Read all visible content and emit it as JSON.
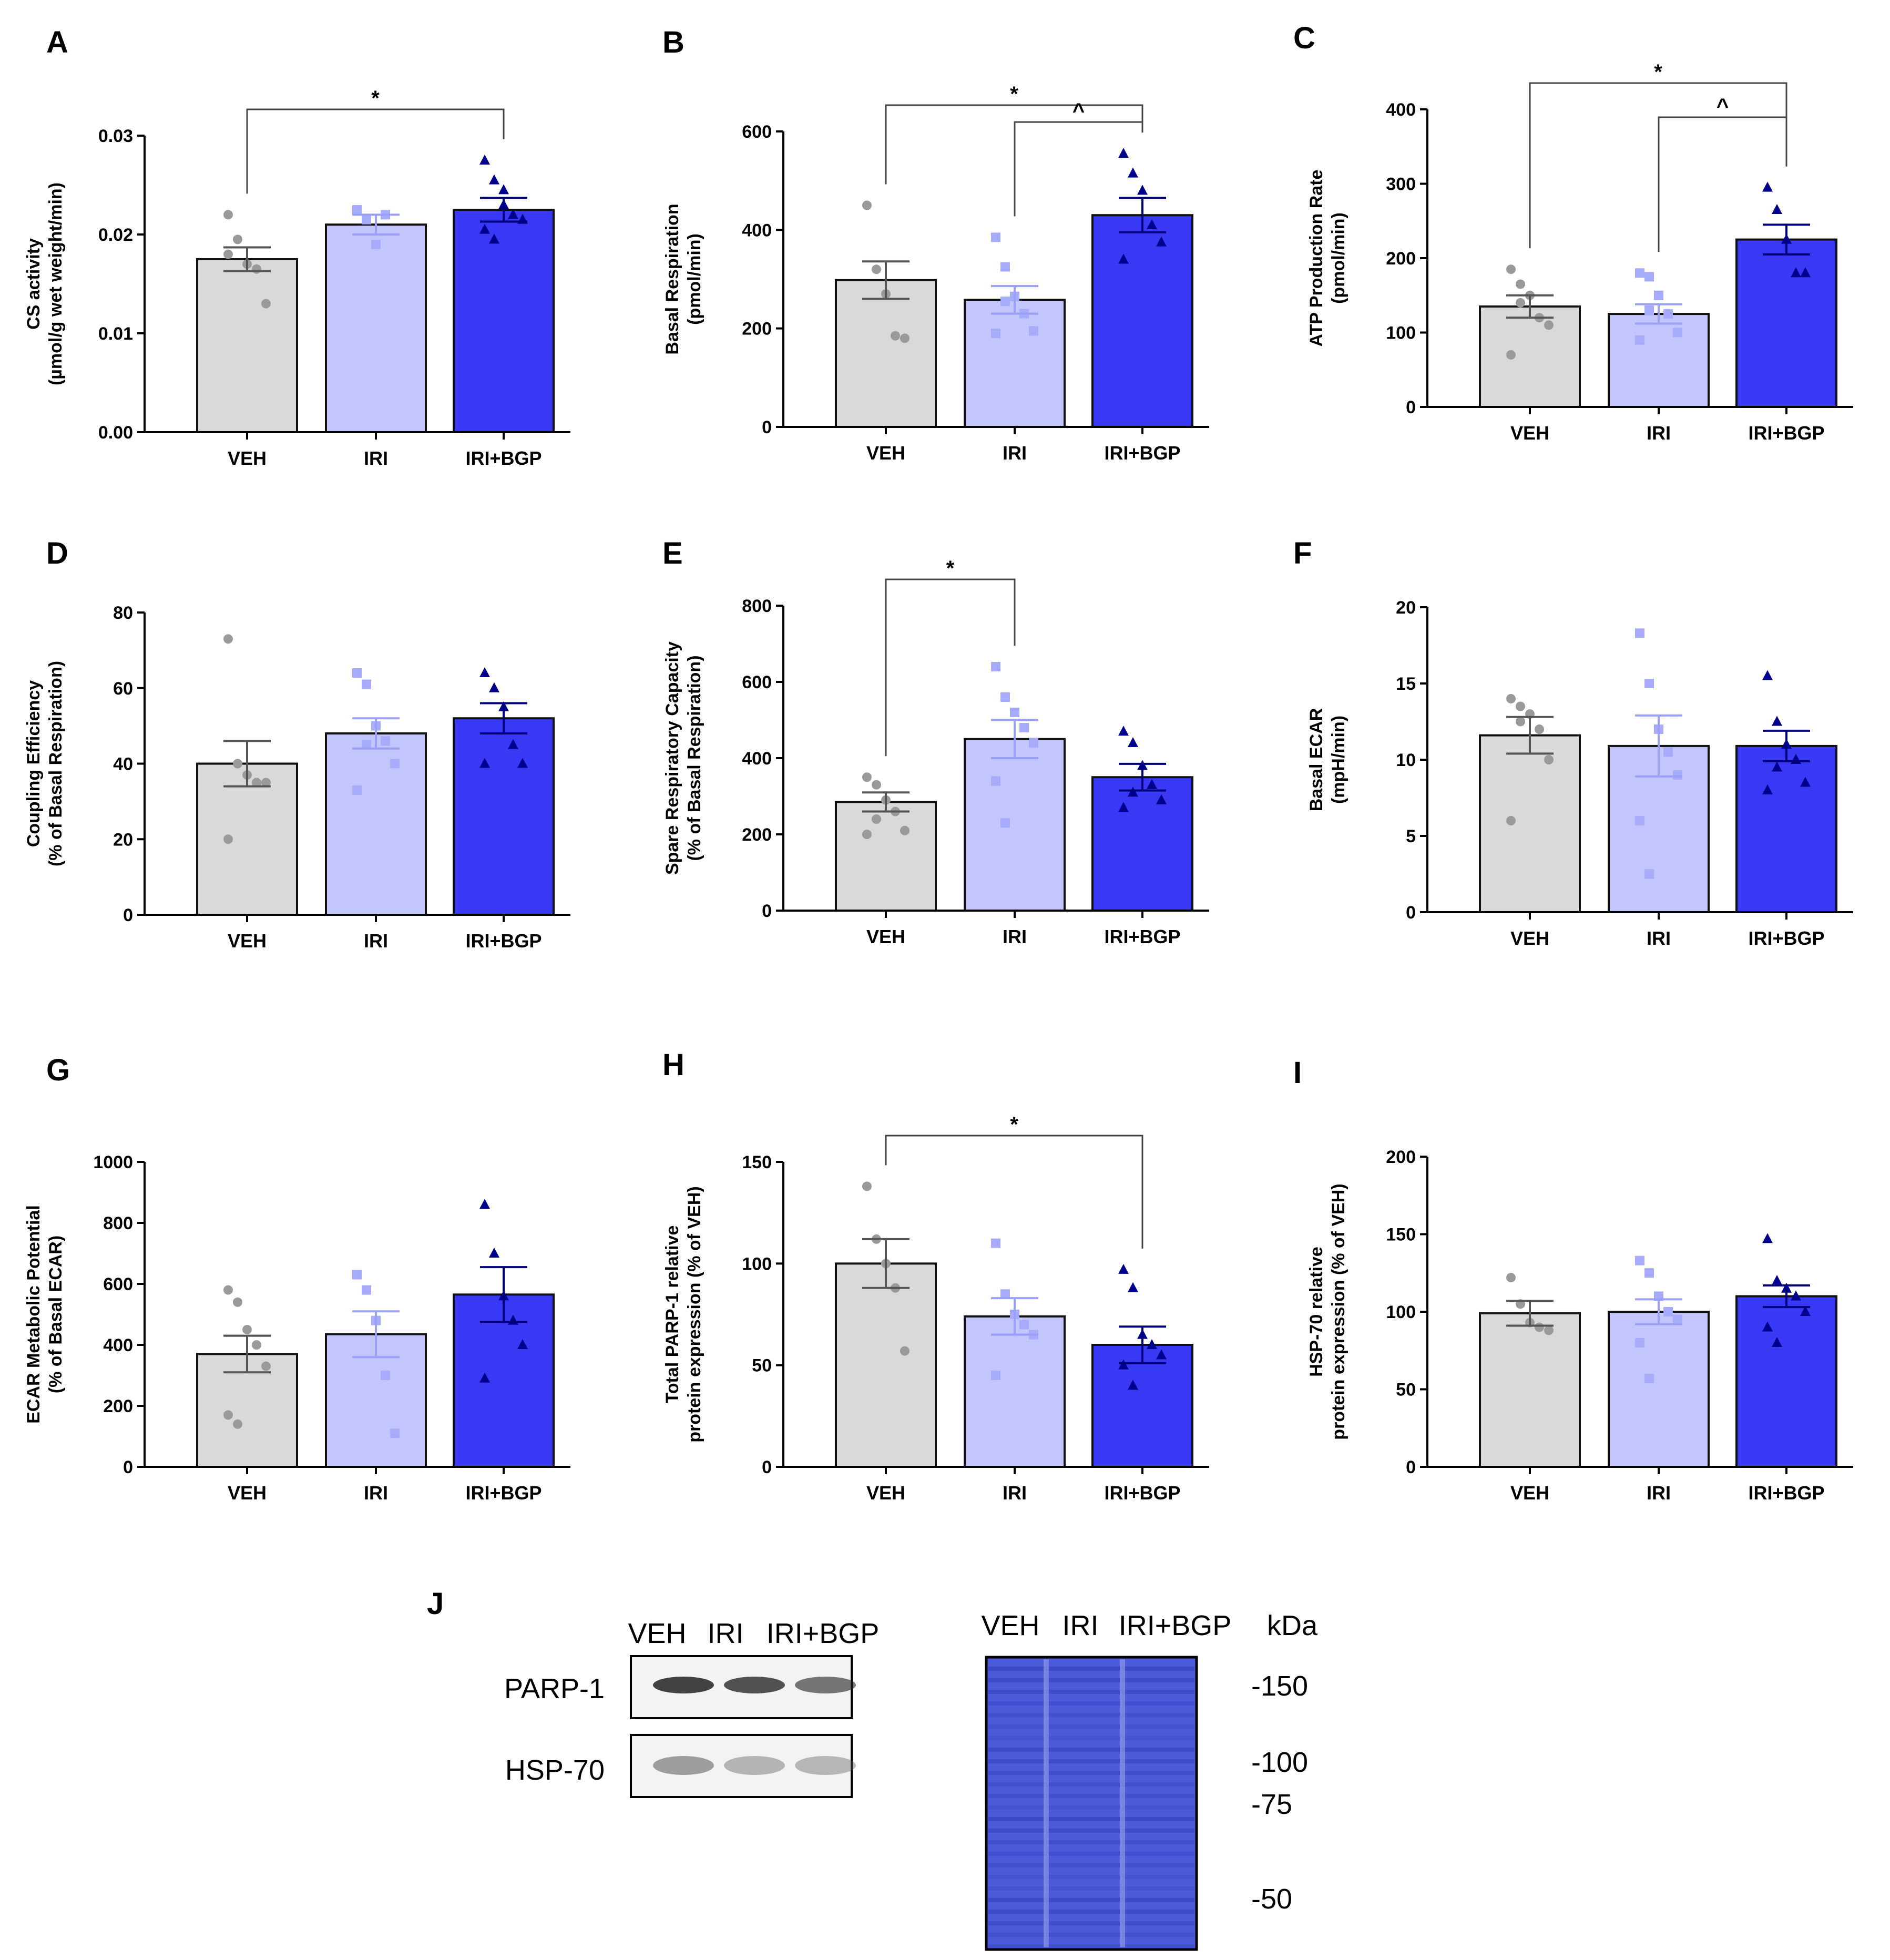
{
  "colors": {
    "veh": "#d9d9d9",
    "iri": "#c3c6fd",
    "bgp": "#3838f5",
    "veh_pt": "#9a9a9a",
    "iri_pt": "#a6abfb",
    "bgp_pt": "#00008e",
    "gel": "#4a5ad8",
    "gel_light": "#8d97ea"
  },
  "chart_data": [
    {
      "panel": "A",
      "type": "bar",
      "categories": [
        "VEH",
        "IRI",
        "IRI+BGP"
      ],
      "values": [
        0.0175,
        0.021,
        0.0225
      ],
      "errors": [
        0.0012,
        0.001,
        0.0012
      ],
      "ylabel": [
        "CS activity",
        "(µmol/g wet weight/min)"
      ],
      "ylim": [
        0,
        0.03
      ],
      "yticks": [
        "0.00",
        "0.01",
        "0.02",
        "0.03"
      ],
      "points": [
        [
          0.022,
          0.0195,
          0.017,
          0.0165,
          0.013,
          0.018
        ],
        [
          0.0225,
          0.0215,
          0.019,
          0.022
        ],
        [
          0.0275,
          0.0255,
          0.0245,
          0.022,
          0.0215,
          0.0205,
          0.0195,
          0.023
        ]
      ],
      "significance": [
        {
          "from": 0,
          "to": 2,
          "label": "*"
        }
      ]
    },
    {
      "panel": "B",
      "type": "bar",
      "categories": [
        "VEH",
        "IRI",
        "IRI+BGP"
      ],
      "values": [
        298,
        258,
        430
      ],
      "errors": [
        38,
        28,
        35
      ],
      "ylabel": [
        "Basal Respiration",
        "(pmol/min)"
      ],
      "ylim": [
        0,
        600
      ],
      "yticks": [
        "0",
        "200",
        "400",
        "600"
      ],
      "points": [
        [
          450,
          320,
          270,
          185,
          180
        ],
        [
          385,
          325,
          265,
          230,
          195,
          190,
          255
        ],
        [
          555,
          515,
          480,
          410,
          375,
          340
        ]
      ],
      "significance": [
        {
          "from": 0,
          "to": 2,
          "label": "*"
        },
        {
          "from": 1,
          "to": 2,
          "label": "^"
        }
      ]
    },
    {
      "panel": "C",
      "type": "bar",
      "categories": [
        "VEH",
        "IRI",
        "IRI+BGP"
      ],
      "values": [
        135,
        125,
        225
      ],
      "errors": [
        15,
        13,
        20
      ],
      "ylabel": [
        "ATP Production Rate",
        "(pmol/min)"
      ],
      "ylim": [
        0,
        400
      ],
      "yticks": [
        "0",
        "100",
        "200",
        "300",
        "400"
      ],
      "points": [
        [
          185,
          165,
          150,
          120,
          110,
          70,
          140
        ],
        [
          180,
          175,
          150,
          125,
          100,
          90,
          130
        ],
        [
          295,
          265,
          225,
          180,
          180
        ]
      ],
      "significance": [
        {
          "from": 0,
          "to": 2,
          "label": "*"
        },
        {
          "from": 1,
          "to": 2,
          "label": "^"
        }
      ]
    },
    {
      "panel": "D",
      "type": "bar",
      "categories": [
        "VEH",
        "IRI",
        "IRI+BGP"
      ],
      "values": [
        40,
        48,
        52
      ],
      "errors": [
        6,
        4,
        4
      ],
      "ylabel": [
        "Coupling Efficiency",
        "(% of Basal Respiration)"
      ],
      "ylim": [
        0,
        80
      ],
      "yticks": [
        "0",
        "20",
        "40",
        "60",
        "80"
      ],
      "points": [
        [
          73,
          40,
          37,
          35,
          35,
          20
        ],
        [
          64,
          61,
          50,
          46,
          40,
          33,
          45
        ],
        [
          64,
          60,
          55,
          45,
          40,
          40
        ]
      ],
      "significance": []
    },
    {
      "panel": "E",
      "type": "bar",
      "categories": [
        "VEH",
        "IRI",
        "IRI+BGP"
      ],
      "values": [
        285,
        450,
        350
      ],
      "errors": [
        25,
        50,
        35
      ],
      "ylabel": [
        "Spare Respiratory Capacity",
        "(% of Basal Respiration)"
      ],
      "ylim": [
        0,
        800
      ],
      "yticks": [
        "0",
        "200",
        "400",
        "600",
        "800"
      ],
      "points": [
        [
          350,
          330,
          290,
          260,
          210,
          200,
          240
        ],
        [
          640,
          560,
          520,
          480,
          440,
          340,
          230
        ],
        [
          470,
          440,
          380,
          330,
          290,
          270,
          310
        ]
      ],
      "significance": [
        {
          "from": 0,
          "to": 1,
          "label": "*"
        }
      ]
    },
    {
      "panel": "F",
      "type": "bar",
      "categories": [
        "VEH",
        "IRI",
        "IRI+BGP"
      ],
      "values": [
        11.6,
        10.9,
        10.9
      ],
      "errors": [
        1.2,
        2.0,
        1.0
      ],
      "ylabel": [
        "Basal ECAR",
        "(mpH/min)"
      ],
      "ylim": [
        0,
        20
      ],
      "yticks": [
        "0",
        "5",
        "10",
        "15",
        "20"
      ],
      "points": [
        [
          14,
          13.5,
          13,
          12,
          10,
          6,
          12.5
        ],
        [
          18.3,
          15,
          12,
          10.5,
          9,
          6,
          2.5
        ],
        [
          15.5,
          12.5,
          11,
          10,
          8.5,
          8,
          9.5
        ]
      ],
      "significance": []
    },
    {
      "panel": "G",
      "type": "bar",
      "categories": [
        "VEH",
        "IRI",
        "IRI+BGP"
      ],
      "values": [
        370,
        435,
        565
      ],
      "errors": [
        60,
        75,
        90
      ],
      "ylabel": [
        "ECAR Metabolic Potential",
        "(% of Basal ECAR)"
      ],
      "ylim": [
        0,
        1000
      ],
      "yticks": [
        "0",
        "200",
        "400",
        "600",
        "800",
        "1000"
      ],
      "points": [
        [
          580,
          540,
          450,
          400,
          330,
          170,
          140
        ],
        [
          630,
          580,
          480,
          300,
          110
        ],
        [
          860,
          700,
          560,
          480,
          400,
          290
        ]
      ],
      "significance": []
    },
    {
      "panel": "H",
      "type": "bar",
      "categories": [
        "VEH",
        "IRI",
        "IRI+BGP"
      ],
      "values": [
        100,
        74,
        60
      ],
      "errors": [
        12,
        9,
        9
      ],
      "ylabel": [
        "Total PARP-1 relative",
        "protein expression (% of VEH)"
      ],
      "ylim": [
        0,
        150
      ],
      "yticks": [
        "0",
        "50",
        "100",
        "150"
      ],
      "points": [
        [
          138,
          112,
          100,
          88,
          57
        ],
        [
          110,
          85,
          75,
          70,
          65,
          45
        ],
        [
          97,
          88,
          65,
          60,
          55,
          50,
          40
        ]
      ],
      "significance": [
        {
          "from": 0,
          "to": 2,
          "label": "*"
        }
      ]
    },
    {
      "panel": "I",
      "type": "bar",
      "categories": [
        "VEH",
        "IRI",
        "IRI+BGP"
      ],
      "values": [
        99,
        100,
        110
      ],
      "errors": [
        8,
        8,
        7
      ],
      "ylabel": [
        "HSP-70 relative",
        "protein expression (% of VEH)"
      ],
      "ylim": [
        0,
        200
      ],
      "yticks": [
        "0",
        "50",
        "100",
        "150",
        "200"
      ],
      "points": [
        [
          122,
          105,
          93,
          90,
          88
        ],
        [
          133,
          125,
          110,
          100,
          95,
          80,
          57
        ],
        [
          147,
          120,
          115,
          110,
          100,
          90,
          80
        ]
      ],
      "significance": []
    }
  ],
  "blot": {
    "panel": "J",
    "lanes": [
      "VEH",
      "IRI",
      "IRI+BGP"
    ],
    "rows": [
      "PARP-1",
      "HSP-70"
    ],
    "gel_lanes": [
      "VEH",
      "IRI",
      "IRI+BGP"
    ],
    "kda_title": "kDa",
    "markers": [
      "-150",
      "-100",
      "-75",
      "-50"
    ]
  }
}
